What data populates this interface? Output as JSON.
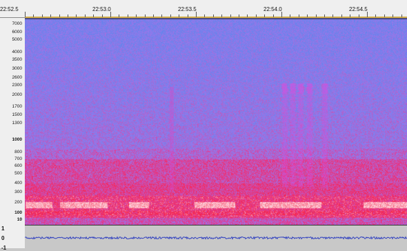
{
  "timeline": {
    "labels": [
      "22:52.5",
      "22:53.0",
      "22:53.5",
      "22:54.0",
      "22:54.5"
    ]
  },
  "frequency_axis": {
    "labels": [
      "7000",
      "6000",
      "5000",
      "4000",
      "3500",
      "3000",
      "2600",
      "2300",
      "2000",
      "1700",
      "1500",
      "1300",
      "1000",
      "800",
      "700",
      "600",
      "500",
      "400",
      "300",
      "200",
      "100",
      "10"
    ]
  },
  "waveform_axis": {
    "labels": [
      "1",
      "0",
      "-1"
    ]
  },
  "colors": {
    "background_noise": "#7f8ff0",
    "low_band": "#f03a6a",
    "hot_band": "#ffe6ee",
    "harmonic_bursts": "#e050d8"
  }
}
